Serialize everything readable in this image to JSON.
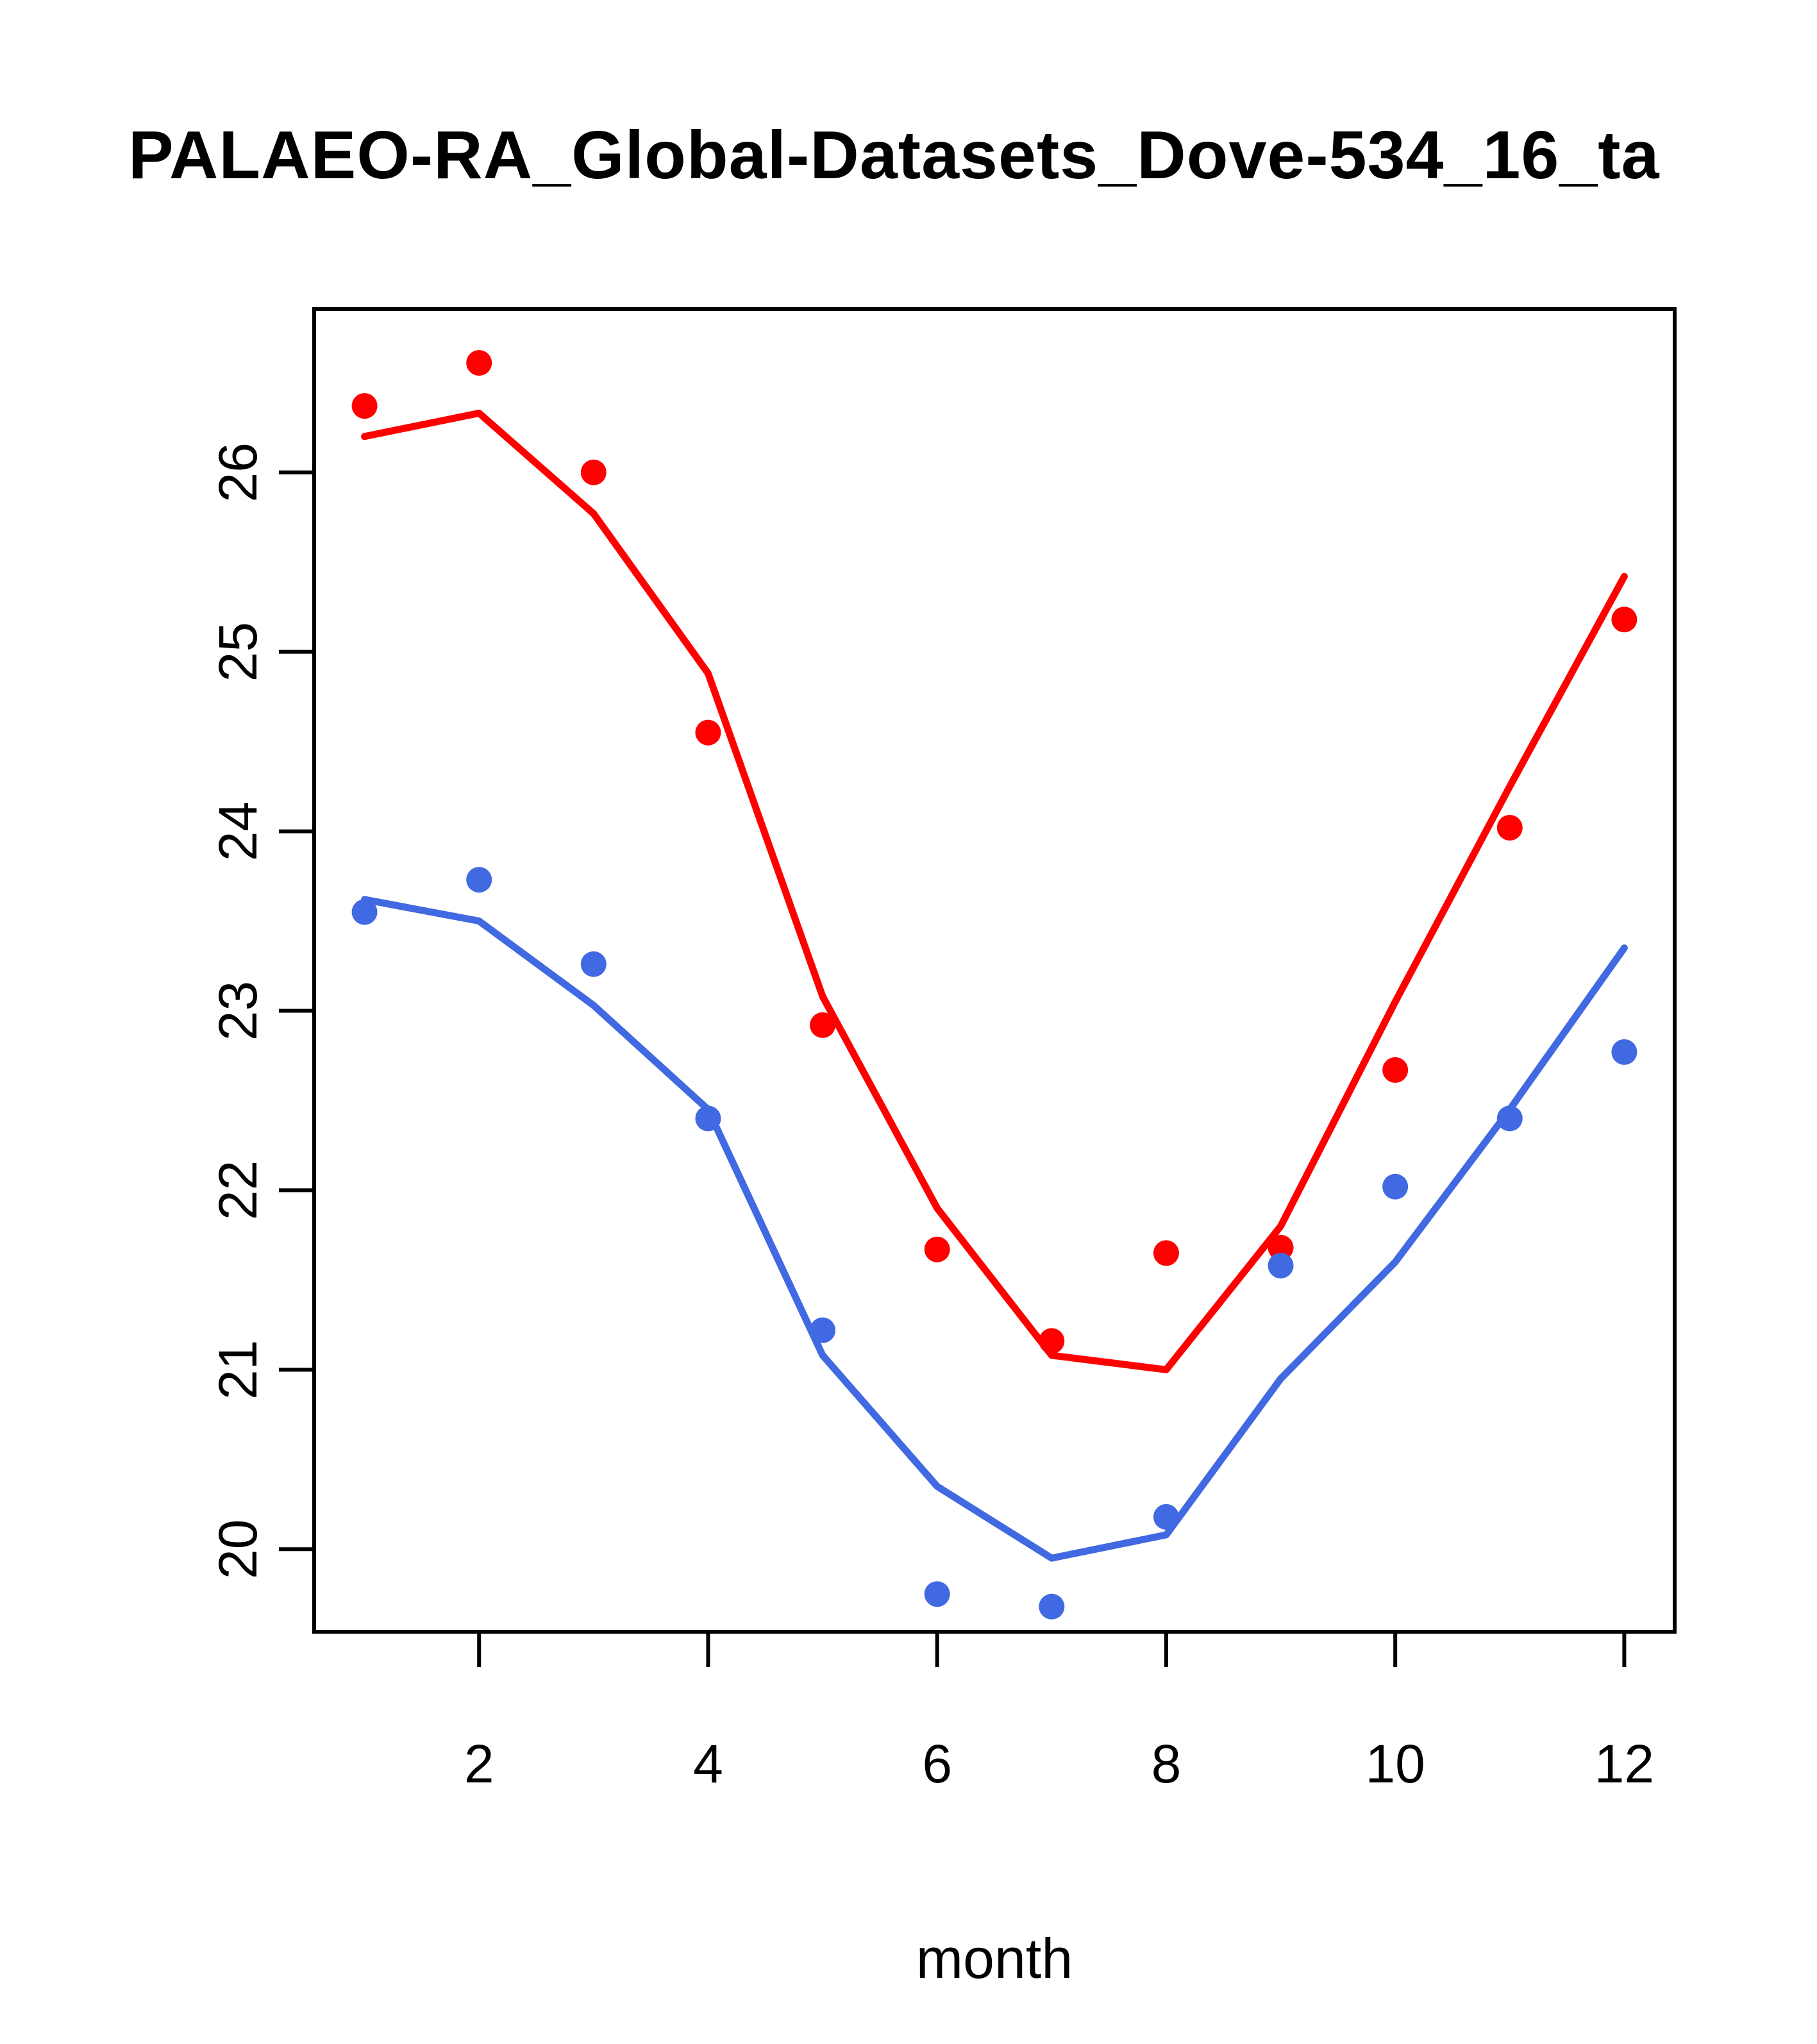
{
  "chart_data": {
    "type": "line+scatter",
    "title": "PALAEO-RA_Global-Datasets_Dove-534_16_ta",
    "xlabel": "month",
    "ylabel": "",
    "x": [
      1,
      2,
      3,
      4,
      5,
      6,
      7,
      8,
      9,
      10,
      11,
      12
    ],
    "xticks": [
      2,
      4,
      6,
      8,
      10,
      12
    ],
    "yticks": [
      20,
      21,
      22,
      23,
      24,
      25,
      26
    ],
    "xlim": [
      0.56,
      12.44
    ],
    "ylim": [
      19.54,
      26.91
    ],
    "grid": false,
    "legend": "none",
    "series": [
      {
        "name": "red-points",
        "kind": "scatter",
        "color": "#ff0000",
        "values": [
          26.37,
          26.61,
          26.0,
          24.55,
          22.92,
          21.67,
          21.16,
          21.65,
          21.68,
          22.67,
          24.02,
          25.18
        ]
      },
      {
        "name": "red-line",
        "kind": "line",
        "color": "#ff0000",
        "values": [
          26.2,
          26.33,
          25.77,
          24.88,
          23.08,
          21.9,
          21.08,
          21.0,
          21.8,
          23.05,
          24.25,
          25.42
        ]
      },
      {
        "name": "blue-points",
        "kind": "scatter",
        "color": "#4169e1",
        "values": [
          23.55,
          23.73,
          23.26,
          22.4,
          21.22,
          19.75,
          19.68,
          20.18,
          21.58,
          22.02,
          22.4,
          22.77
        ]
      },
      {
        "name": "blue-line",
        "kind": "line",
        "color": "#4169e1",
        "values": [
          23.62,
          23.5,
          23.03,
          22.45,
          21.08,
          20.35,
          19.95,
          20.08,
          20.95,
          21.6,
          22.45,
          23.35
        ]
      }
    ]
  }
}
